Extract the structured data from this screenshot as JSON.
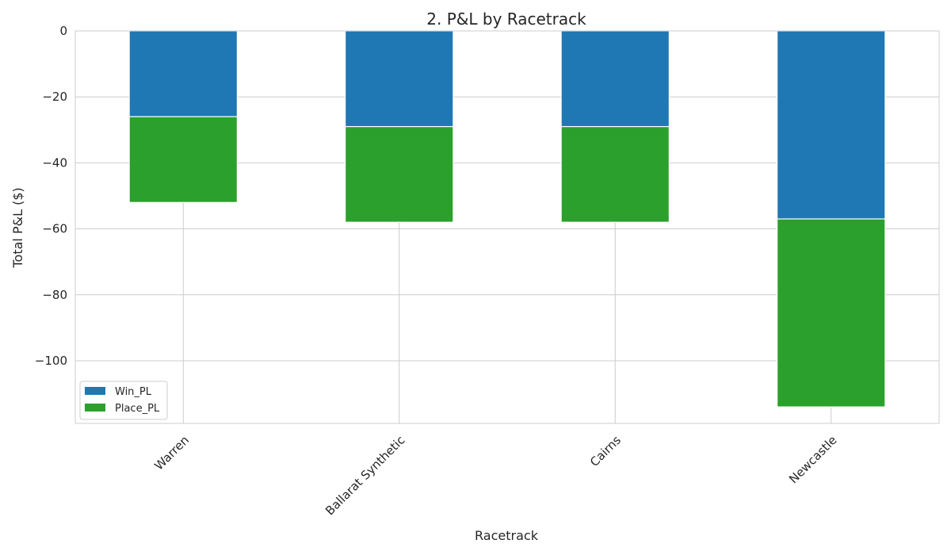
{
  "chart_data": {
    "type": "bar",
    "stacked": true,
    "title": "2. P&L by Racetrack",
    "xlabel": "Racetrack",
    "ylabel": "Total P&L ($)",
    "categories": [
      "Warren",
      "Ballarat Synthetic",
      "Cairns",
      "Newcastle"
    ],
    "series": [
      {
        "name": "Win_PL",
        "color": "#1f77b4",
        "values": [
          -26,
          -29,
          -29,
          -57
        ]
      },
      {
        "name": "Place_PL",
        "color": "#2ca02c",
        "values": [
          -26,
          -29,
          -29,
          -57
        ]
      }
    ],
    "ylim": [
      -119,
      0
    ],
    "yticks": [
      0,
      -20,
      -40,
      -60,
      -80,
      -100
    ],
    "ytick_labels": [
      "0",
      "−20",
      "−40",
      "−60",
      "−80",
      "−100"
    ],
    "grid": true,
    "legend_position": "lower-left"
  }
}
